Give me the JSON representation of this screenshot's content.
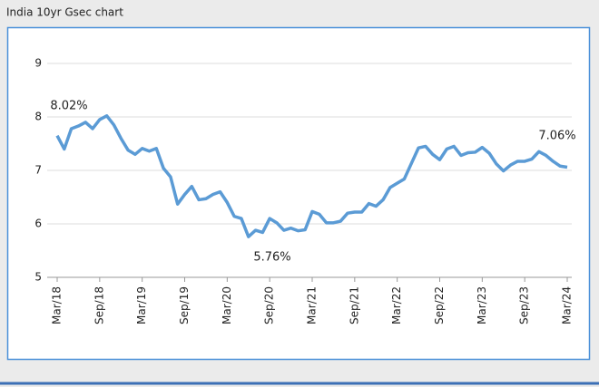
{
  "chart_data": {
    "type": "line",
    "title": "India 10yr Gsec chart",
    "categories": [
      "Mar/18",
      null,
      null,
      null,
      null,
      null,
      "Sep/18",
      null,
      null,
      null,
      null,
      null,
      "Mar/19",
      null,
      null,
      null,
      null,
      null,
      "Sep/19",
      null,
      null,
      null,
      null,
      null,
      "Mar/20",
      null,
      null,
      null,
      null,
      null,
      "Sep/20",
      null,
      null,
      null,
      null,
      null,
      "Mar/21",
      null,
      null,
      null,
      null,
      null,
      "Sep/21",
      null,
      null,
      null,
      null,
      null,
      "Mar/22",
      null,
      null,
      null,
      null,
      null,
      "Sep/22",
      null,
      null,
      null,
      null,
      null,
      "Mar/23",
      null,
      null,
      null,
      null,
      null,
      "Sep/23",
      null,
      null,
      null,
      null,
      null,
      "Mar/24"
    ],
    "values": [
      7.65,
      7.4,
      7.78,
      7.83,
      7.9,
      7.78,
      7.95,
      8.02,
      7.85,
      7.6,
      7.38,
      7.3,
      7.41,
      7.36,
      7.41,
      7.04,
      6.88,
      6.37,
      6.55,
      6.7,
      6.45,
      6.47,
      6.55,
      6.6,
      6.4,
      6.14,
      6.1,
      5.76,
      5.88,
      5.84,
      6.1,
      6.02,
      5.88,
      5.92,
      5.87,
      5.89,
      6.23,
      6.18,
      6.02,
      6.02,
      6.05,
      6.2,
      6.22,
      6.22,
      6.38,
      6.33,
      6.45,
      6.68,
      6.76,
      6.84,
      7.13,
      7.42,
      7.45,
      7.3,
      7.2,
      7.4,
      7.45,
      7.28,
      7.33,
      7.34,
      7.43,
      7.32,
      7.12,
      6.99,
      7.1,
      7.17,
      7.17,
      7.21,
      7.35,
      7.28,
      7.17,
      7.08,
      7.06
    ],
    "color": "#5b9bd5",
    "ylim": [
      5,
      9
    ],
    "yticks": [
      5,
      6,
      7,
      8,
      9
    ],
    "grid": true,
    "annotations": [
      "8.02%",
      "5.76%",
      "7.06%"
    ]
  }
}
